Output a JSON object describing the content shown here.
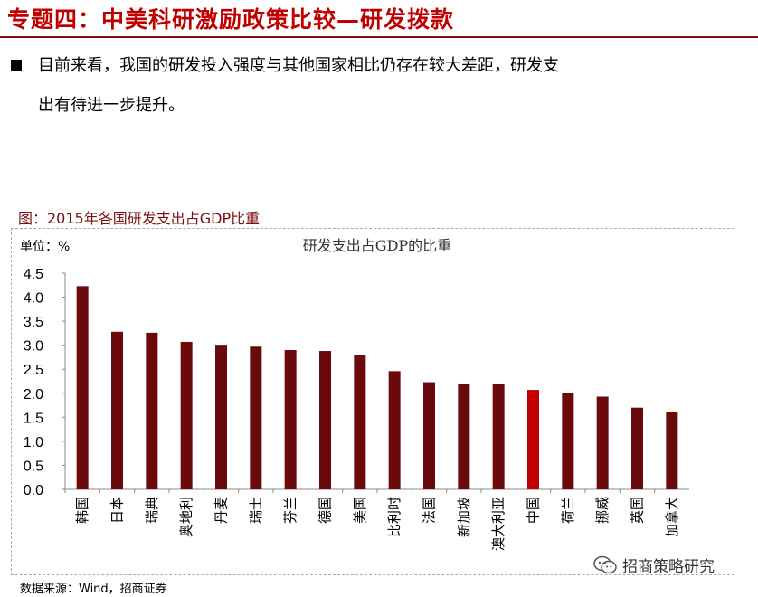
{
  "header": {
    "title": "专题四：中美科研激励政策比较—研发拨款"
  },
  "bullet": {
    "line1": "目前来看，我国的研发投入强度与其他国家相比仍存在较大差距，研发支",
    "line2": "出有待进一步提升。"
  },
  "figure": {
    "title": "图：2015年各国研发支出占GDP比重",
    "unit": "单位：%",
    "source": "数据来源：Wind，招商证券",
    "watermark": "招商策略研究"
  },
  "colors": {
    "bar": "#6b0a0a",
    "highlight": "#c00000",
    "accent": "#c00000"
  },
  "chart_data": {
    "type": "bar",
    "title": "研发支出占GDP的比重",
    "categories": [
      "韩国",
      "日本",
      "瑞典",
      "奥地利",
      "丹麦",
      "瑞士",
      "芬兰",
      "德国",
      "美国",
      "比利时",
      "法国",
      "新加坡",
      "澳大利亚",
      "中国",
      "荷兰",
      "挪威",
      "英国",
      "加拿大"
    ],
    "values": [
      4.23,
      3.28,
      3.26,
      3.07,
      3.01,
      2.97,
      2.9,
      2.88,
      2.79,
      2.46,
      2.23,
      2.2,
      2.2,
      2.07,
      2.01,
      1.93,
      1.7,
      1.61
    ],
    "highlight_category": "中国",
    "ylim": [
      0,
      4.5
    ],
    "yticks": [
      "0.0",
      "0.5",
      "1.0",
      "1.5",
      "2.0",
      "2.5",
      "3.0",
      "3.5",
      "4.0",
      "4.5"
    ],
    "ytick_values": [
      0,
      0.5,
      1.0,
      1.5,
      2.0,
      2.5,
      3.0,
      3.5,
      4.0,
      4.5
    ],
    "grid": false,
    "legend": "none"
  }
}
